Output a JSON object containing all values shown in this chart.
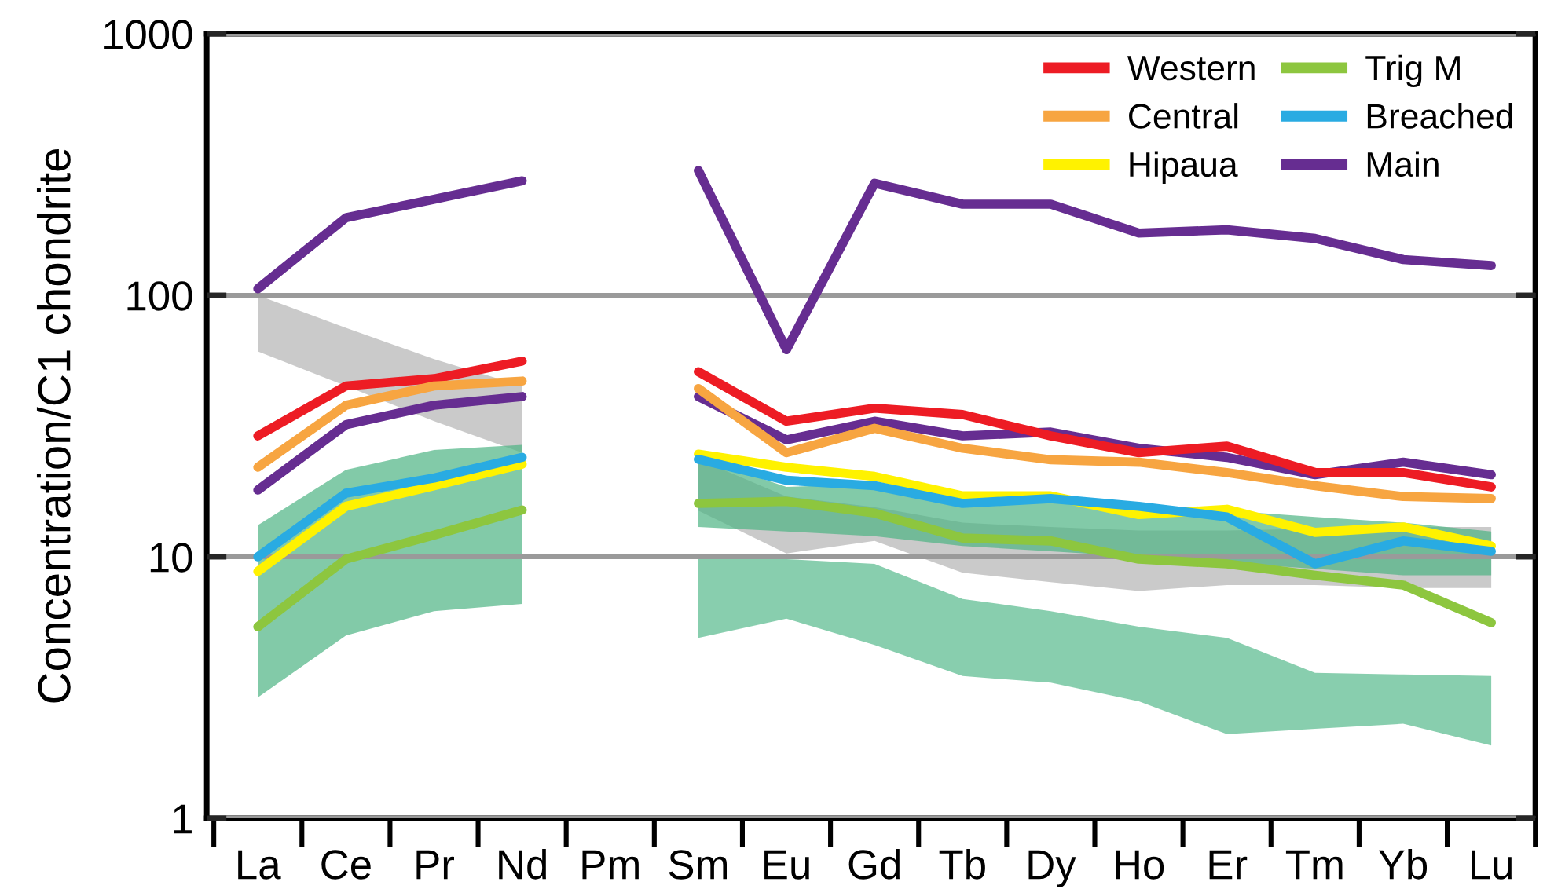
{
  "chart_data": {
    "type": "line",
    "ylabel": "Concentration/C1 chondrite",
    "categories": [
      "La",
      "Ce",
      "Pr",
      "Nd",
      "Pm",
      "Sm",
      "Eu",
      "Gd",
      "Tb",
      "Dy",
      "Ho",
      "Er",
      "Tm",
      "Yb",
      "Lu"
    ],
    "log": true,
    "ylim": [
      1,
      1000
    ],
    "yticks": [
      1,
      10,
      100,
      1000
    ],
    "grid": "y",
    "legend": "top right",
    "line_style": "solid",
    "series": [
      {
        "type": "area",
        "color": "#b3b3b3",
        "values": [
          null,
          null,
          null,
          null,
          null,
          null,
          null,
          null,
          null,
          null,
          null,
          null,
          null,
          null,
          null
        ],
        "lower": [
          61,
          45,
          33,
          25,
          null,
          15,
          10.3,
          11.5,
          8.7,
          8,
          7.4,
          7.8,
          7.8,
          7.6,
          7.6
        ],
        "upper": [
          100,
          75,
          57,
          45,
          null,
          23.6,
          17,
          15.5,
          13.5,
          13,
          12.6,
          12.6,
          12.8,
          13,
          13
        ]
      },
      {
        "type": "area",
        "color": "#4db383",
        "values": [
          null,
          null,
          null,
          null,
          null,
          null,
          null,
          null,
          null,
          null,
          null,
          null,
          null,
          null,
          null
        ],
        "lower": [
          2.9,
          5,
          6.2,
          6.6,
          null,
          13,
          12.5,
          12,
          11,
          10.5,
          10,
          9.5,
          9,
          8.5,
          8.5
        ],
        "upper": [
          13.2,
          21.5,
          25.6,
          26.8,
          null,
          24,
          18.5,
          19,
          17,
          17.5,
          15,
          15,
          14.2,
          13.5,
          12.5
        ]
      },
      {
        "type": "area",
        "color": "#56b98b",
        "values": [
          null,
          null,
          null,
          null,
          null,
          null,
          null,
          null,
          null,
          null,
          null,
          null,
          null,
          null,
          null
        ],
        "lower": [
          null,
          null,
          null,
          null,
          null,
          4.9,
          5.8,
          4.6,
          3.5,
          3.3,
          2.8,
          2.1,
          2.2,
          2.3,
          1.9
        ],
        "upper": [
          null,
          null,
          null,
          null,
          null,
          10,
          9.8,
          9.4,
          6.9,
          6.2,
          5.4,
          4.9,
          3.6,
          3.55,
          3.5
        ]
      },
      {
        "color": "#662d91",
        "values": [
          18,
          32,
          38,
          41,
          null,
          41,
          28,
          33,
          29,
          30,
          26,
          24,
          20.6,
          23,
          20.6
        ]
      },
      {
        "name": "Western",
        "color": "#ed1c24",
        "values": [
          29,
          45,
          48,
          56,
          null,
          51,
          33,
          37,
          35,
          29,
          25,
          26.5,
          21,
          21,
          18.5
        ]
      },
      {
        "name": "Central",
        "color": "#f7a541",
        "values": [
          22,
          38,
          45,
          47,
          null,
          44,
          25,
          31,
          26,
          23.5,
          23,
          21,
          18.7,
          17,
          16.7
        ]
      },
      {
        "name": "Hipaua",
        "color": "#fff200",
        "values": [
          8.8,
          15.6,
          18.7,
          22.6,
          null,
          24.7,
          22,
          20.3,
          17.1,
          17.1,
          14.5,
          15.2,
          12.4,
          13,
          11
        ]
      },
      {
        "name": "Trig M",
        "color": "#8dc63f",
        "values": [
          5.4,
          9.8,
          12.1,
          15.1,
          null,
          16,
          16.3,
          14.7,
          11.8,
          11.5,
          9.8,
          9.4,
          8.5,
          7.8,
          5.6
        ]
      },
      {
        "name": "Breached",
        "color": "#29abe2",
        "values": [
          10,
          17.5,
          20,
          24,
          null,
          23.6,
          19.6,
          18.7,
          16,
          16.7,
          15.6,
          14.2,
          9.4,
          11.5,
          10.5
        ]
      },
      {
        "name": "Main",
        "color": "#662d91",
        "values": [
          106,
          198,
          233,
          274,
          null,
          300,
          62,
          268,
          223,
          223,
          173,
          178,
          165,
          137,
          130
        ]
      }
    ]
  }
}
